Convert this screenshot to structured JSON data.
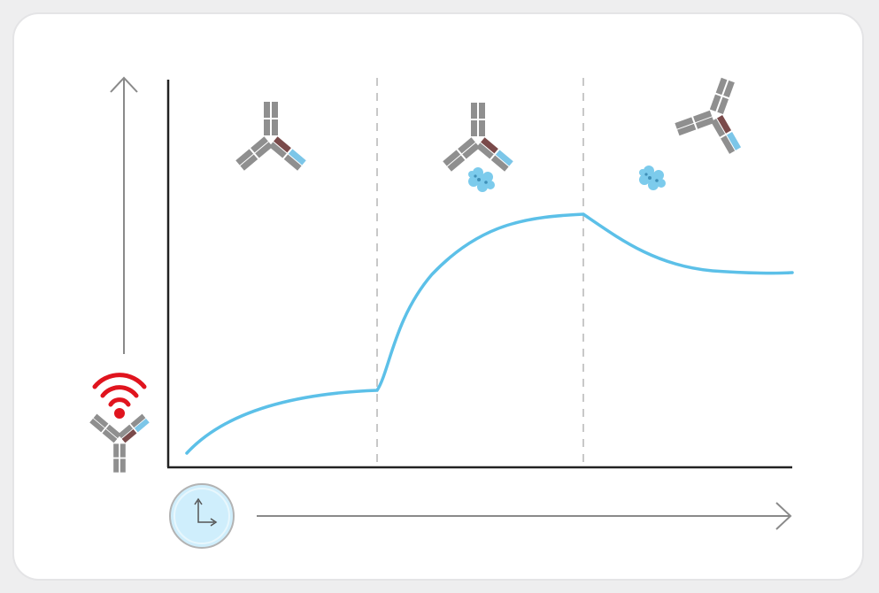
{
  "diagram": {
    "kind": "binding-kinetics-sensorgram",
    "phases": [
      "baseline-capture",
      "association",
      "dissociation"
    ],
    "icons": {
      "y_axis": "signal-antibody-icon",
      "x_axis": "clock-icon",
      "phase_1": "antibody-icon",
      "phase_2": "antibody-antigen-complex-icon",
      "phase_3": "antibody-released-antigen-icon"
    },
    "colors": {
      "curve": "#5cc0e8",
      "axis": "#222222",
      "arrow": "#8a8a8a",
      "phase_divider": "#c8c8c8",
      "signal": "#e0141e",
      "heavy_chain": "#8f8f8f",
      "light_chain_dark": "#7a4a4a",
      "light_chain_light": "#7cc6e8",
      "antigen": "#7ccbec",
      "clock_fill": "#cfeefc",
      "card_background": "#ffffff",
      "page_background": "#eeeeef"
    }
  }
}
